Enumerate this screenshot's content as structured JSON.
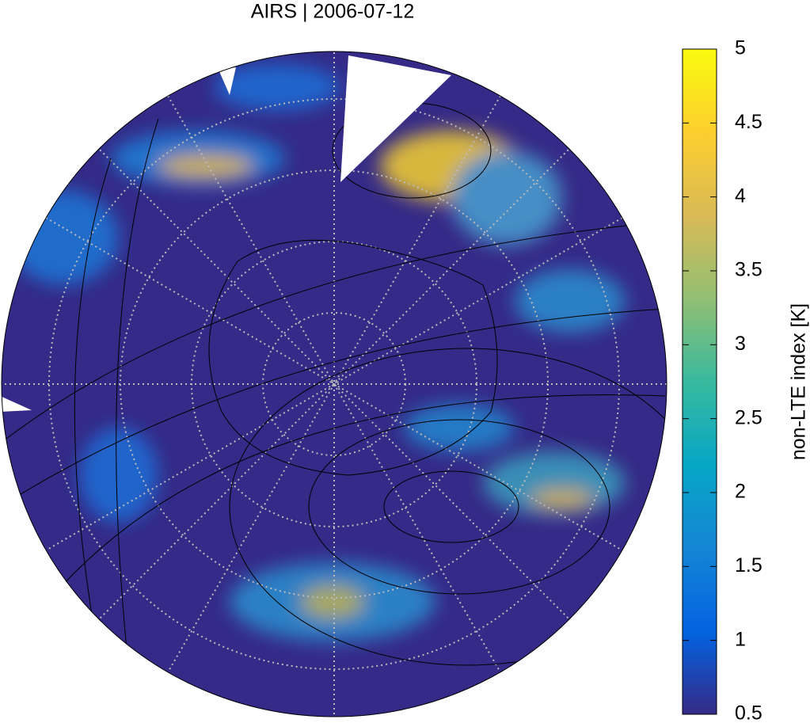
{
  "title": "AIRS | 2006-07-12",
  "colorbar": {
    "label": "non-LTE index [K]",
    "lim": [
      0.5,
      5
    ],
    "ticks": [
      0.5,
      1,
      1.5,
      2,
      2.5,
      3,
      3.5,
      4,
      4.5,
      5
    ],
    "colormap": [
      "#352a87",
      "#0363e1",
      "#1485d4",
      "#06a7c6",
      "#38b99e",
      "#92bf73",
      "#d9ba56",
      "#fcce2e",
      "#f9fb0e"
    ]
  }
}
